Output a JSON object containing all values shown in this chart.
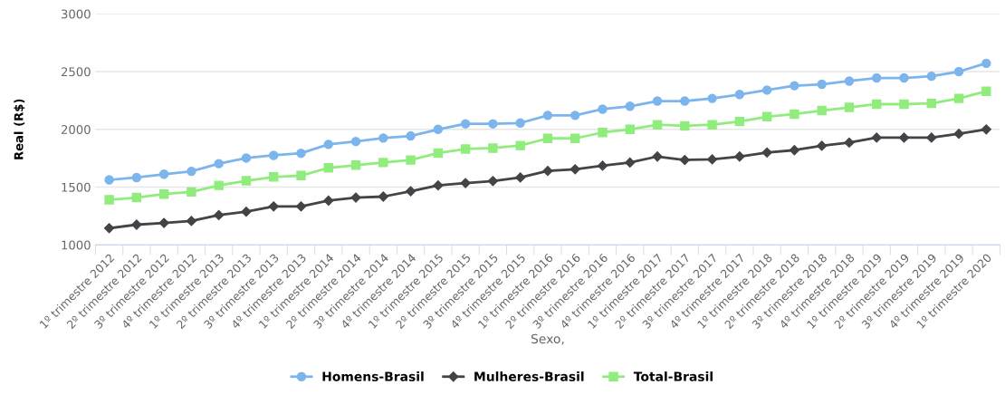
{
  "chart_data": {
    "type": "line",
    "xlabel": "Sexo,",
    "ylabel": "Real (R$)",
    "categories": [
      "1º trimestre 2012",
      "2º trimestre 2012",
      "3º trimestre 2012",
      "4º trimestre 2012",
      "1º trimestre 2013",
      "2º trimestre 2013",
      "3º trimestre 2013",
      "4º trimestre 2013",
      "1º trimestre 2014",
      "2º trimestre 2014",
      "3º trimestre 2014",
      "4º trimestre 2014",
      "1º trimestre 2015",
      "2º trimestre 2015",
      "3º trimestre 2015",
      "4º trimestre 2015",
      "1º trimestre 2016",
      "2º trimestre 2016",
      "3º trimestre 2016",
      "4º trimestre 2016",
      "1º trimestre 2017",
      "2º trimestre 2017",
      "3º trimestre 2017",
      "4º trimestre 2017",
      "1º trimestre 2018",
      "2º trimestre 2018",
      "3º trimestre 2018",
      "4º trimestre 2018",
      "1º trimestre 2019",
      "2º trimestre 2019",
      "3º trimestre 2019",
      "4º trimestre 2019",
      "1º trimestre 2020"
    ],
    "series": [
      {
        "name": "Homens-Brasil",
        "color": "#7cb5ec",
        "marker": "circle",
        "values": [
          1563,
          1583,
          1612,
          1637,
          1703,
          1752,
          1775,
          1793,
          1870,
          1895,
          1925,
          1943,
          2000,
          2048,
          2048,
          2055,
          2121,
          2121,
          2175,
          2200,
          2245,
          2245,
          2268,
          2302,
          2340,
          2378,
          2390,
          2418,
          2445,
          2445,
          2460,
          2500,
          2572
        ]
      },
      {
        "name": "Mulheres-Brasil",
        "color": "#434348",
        "marker": "diamond",
        "values": [
          1145,
          1175,
          1190,
          1207,
          1258,
          1287,
          1333,
          1333,
          1383,
          1410,
          1418,
          1465,
          1515,
          1535,
          1553,
          1583,
          1640,
          1655,
          1685,
          1713,
          1765,
          1735,
          1740,
          1765,
          1800,
          1820,
          1858,
          1885,
          1928,
          1928,
          1928,
          1962,
          2000
        ]
      },
      {
        "name": "Total-Brasil",
        "color": "#90ed7d",
        "marker": "square",
        "values": [
          1390,
          1410,
          1440,
          1458,
          1515,
          1555,
          1588,
          1600,
          1667,
          1690,
          1713,
          1735,
          1795,
          1830,
          1838,
          1860,
          1922,
          1922,
          1973,
          2000,
          2040,
          2030,
          2040,
          2068,
          2110,
          2132,
          2163,
          2190,
          2218,
          2218,
          2225,
          2268,
          2330
        ]
      }
    ],
    "ylim": [
      1000,
      3000
    ],
    "yticks": [
      1000,
      1500,
      2000,
      2500,
      3000
    ],
    "grid": "y",
    "legend": "bottom",
    "line_style": "solid"
  }
}
